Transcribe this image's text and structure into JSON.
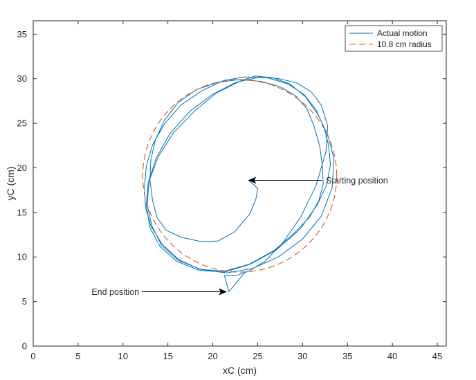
{
  "chart_data": {
    "type": "line",
    "title": "",
    "xlabel": "xC (cm)",
    "ylabel": "yC (cm)",
    "xlim": [
      0,
      46
    ],
    "ylim": [
      0,
      36.5
    ],
    "xticks": [
      0,
      5,
      10,
      15,
      20,
      25,
      30,
      35,
      40,
      45
    ],
    "yticks": [
      0,
      5,
      10,
      15,
      20,
      25,
      30,
      35
    ],
    "grid": false,
    "legend_position": "top-right",
    "series": [
      {
        "name": "Actual motion",
        "color": "#0072BD",
        "style": "solid",
        "x": [
          24.0,
          25.0,
          24.8,
          24.1,
          22.4,
          20.6,
          18.8,
          16.5,
          14.8,
          13.8,
          13.3,
          13.0,
          13.1,
          13.6,
          14.6,
          16.1,
          18.2,
          20.6,
          23.0,
          25.4,
          27.5,
          29.2,
          30.5,
          31.3,
          31.9,
          32.2,
          32.3,
          31.8,
          30.8,
          29.1,
          26.8,
          24.1,
          21.3,
          18.6,
          16.2,
          14.3,
          13.1,
          12.5,
          12.4,
          12.6,
          13.3,
          14.6,
          16.4,
          18.7,
          21.2,
          23.6,
          26.1,
          28.4,
          30.2,
          31.5,
          32.4,
          32.9,
          33.1,
          32.7,
          31.6,
          29.7,
          27.1,
          24.2,
          21.3,
          18.5,
          16.0,
          14.1,
          13.0,
          12.6,
          12.8,
          13.7,
          15.2,
          17.4,
          19.9,
          22.4,
          24.7,
          26.7,
          28.6,
          30.3,
          31.7,
          32.8,
          33.5,
          33.3,
          32.1,
          30.0,
          27.3,
          24.4,
          21.5,
          18.7,
          16.2,
          14.3,
          13.2,
          12.7,
          12.9,
          13.9,
          15.6,
          17.9,
          20.4,
          23.0,
          25.3,
          27.4,
          29.4,
          31.0,
          32.1,
          32.8,
          32.6,
          31.5,
          29.8,
          27.8,
          25.8,
          24.0,
          22.6,
          21.3
        ],
        "y": [
          18.6,
          17.7,
          16.5,
          14.8,
          12.8,
          11.8,
          11.7,
          12.2,
          13.0,
          14.4,
          16.3,
          18.6,
          20.9,
          23.1,
          25.3,
          27.3,
          28.8,
          29.6,
          29.9,
          29.7,
          29.1,
          28.1,
          26.6,
          24.6,
          22.5,
          20.3,
          18.2,
          16.3,
          14.5,
          12.7,
          10.7,
          9.2,
          8.4,
          8.6,
          9.7,
          11.5,
          13.5,
          15.6,
          17.8,
          20.2,
          22.6,
          24.9,
          27.0,
          28.6,
          29.8,
          30.2,
          30.1,
          29.4,
          28.2,
          26.5,
          24.5,
          22.5,
          20.4,
          18.1,
          15.8,
          13.1,
          10.8,
          9.2,
          8.3,
          8.5,
          9.5,
          11.2,
          13.3,
          15.8,
          18.3,
          21.1,
          23.8,
          26.3,
          28.2,
          29.5,
          30.3,
          30.1,
          29.4,
          28.0,
          26.0,
          23.7,
          21.0,
          17.8,
          14.6,
          12.0,
          10.0,
          8.7,
          8.2,
          8.6,
          9.6,
          11.3,
          13.5,
          15.9,
          18.5,
          21.2,
          23.9,
          26.3,
          28.4,
          29.7,
          30.2,
          30.0,
          29.5,
          28.5,
          27.0,
          24.7,
          21.8,
          18.0,
          14.5,
          11.6,
          9.5,
          8.4,
          7.9,
          7.9
        ],
        "end_segment": {
          "x": [
            21.3,
            21.8,
            23.6
          ],
          "y": [
            7.9,
            6.1,
            8.3
          ]
        }
      },
      {
        "name": "10.8 cm radius",
        "color": "#D95319",
        "style": "dashed",
        "circle": {
          "cx": 23.0,
          "cy": 19.1,
          "r": 10.8
        }
      }
    ],
    "annotations": [
      {
        "text": "Starting position",
        "point": [
          24.0,
          18.6
        ],
        "text_at": [
          32.6,
          18.6
        ]
      },
      {
        "text": "End position",
        "point": [
          21.5,
          6.1
        ],
        "text_at": [
          11.8,
          6.1
        ]
      }
    ]
  }
}
